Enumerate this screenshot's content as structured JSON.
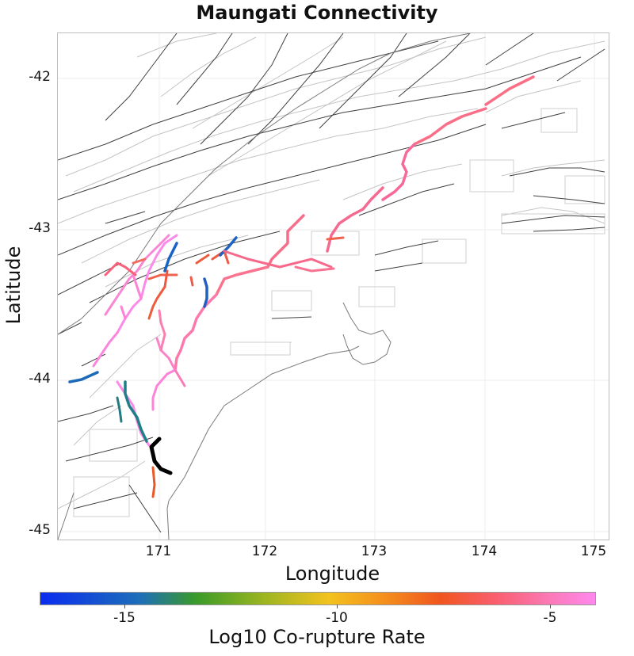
{
  "title": "Maungati Connectivity",
  "axes": {
    "xlabel": "Longitude",
    "ylabel": "Latitude",
    "xticks": [
      "171",
      "172",
      "173",
      "174",
      "175"
    ],
    "yticks": [
      "-42",
      "-43",
      "-44",
      "-45"
    ]
  },
  "colorbar": {
    "label": "Log10 Co-rupture Rate",
    "ticks": [
      "-15",
      "-10",
      "-5"
    ]
  }
}
